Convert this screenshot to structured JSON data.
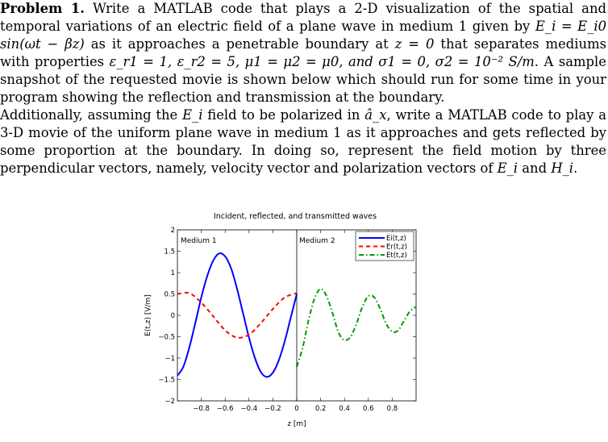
{
  "problem": {
    "heading": "Problem 1.",
    "part1_a": "Write a MATLAB code that plays a 2-D visualization of the spatial and temporal variations of an electric field of a plane wave in medium 1 given by",
    "field_expr": "E_i = E_i0 sin(ωt − βz)",
    "part1_b": "as it approaches a penetrable boundary at",
    "boundary_expr": "z = 0",
    "part1_c": "that separates mediums with properties",
    "properties_expr": "ε_r1 = 1, ε_r2 = 5, μ1 = μ2 = μ0, and σ1 = 0, σ2 = 10⁻² S/m.",
    "part1_d": "A sample snapshot of the requested movie is shown below which should run for some time in your program showing the reflection and transmission at the boundary.",
    "part2_a": "Additionally, assuming the",
    "part2_field": "E_i",
    "part2_b": "field to be polarized in",
    "part2_dir": "â_x",
    "part2_c": ", write a MATLAB code to play a 3-D movie of the uniform plane wave in medium 1 as it approaches and gets reflected by some proportion at the boundary. In doing so, represent the field motion by three perpendicular vectors, namely, velocity vector and polarization vectors of",
    "part2_e": "E_i",
    "part2_and": "and",
    "part2_h": "H_i",
    "part2_end": "."
  },
  "chart_data": {
    "type": "line",
    "title": "Incident, reflected, and transmitted waves",
    "xlabel": "z [m]",
    "ylabel": "E(t,z) [V/m]",
    "xlim": [
      -1.0,
      1.0
    ],
    "ylim": [
      -2,
      2
    ],
    "xticks": [
      "-0.8",
      "-0.6",
      "-0.4",
      "-0.2",
      "0",
      "0.2",
      "0.4",
      "0.6",
      "0.8"
    ],
    "yticks": [
      "-2",
      "-1.5",
      "-1",
      "-0.5",
      "0",
      "0.5",
      "1",
      "1.5",
      "2"
    ],
    "boundary_x": 0,
    "annotations": [
      "Medium 1",
      "Medium 2"
    ],
    "legend_placement": "top-right",
    "series": [
      {
        "name": "Ei(t,z)",
        "color": "#0000ff",
        "style": "solid",
        "x": [
          -1.0,
          -0.95,
          -0.9,
          -0.85,
          -0.8,
          -0.75,
          -0.7,
          -0.65,
          -0.6,
          -0.55,
          -0.5,
          -0.45,
          -0.4,
          -0.35,
          -0.3,
          -0.25,
          -0.2,
          -0.15,
          -0.1,
          -0.05,
          0.0
        ],
        "y": [
          -1.41,
          -1.2,
          -0.75,
          -0.18,
          0.42,
          0.92,
          1.28,
          1.45,
          1.38,
          1.1,
          0.62,
          0.05,
          -0.52,
          -1.0,
          -1.33,
          -1.44,
          -1.34,
          -1.05,
          -0.6,
          -0.05,
          0.5
        ]
      },
      {
        "name": "Er(t,z)",
        "color": "#ff0000",
        "style": "dashed",
        "x": [
          -1.0,
          -0.9,
          -0.8,
          -0.7,
          -0.6,
          -0.5,
          -0.4,
          -0.3,
          -0.2,
          -0.1,
          0.0
        ],
        "y": [
          0.5,
          0.52,
          0.3,
          -0.02,
          -0.35,
          -0.52,
          -0.45,
          -0.18,
          0.15,
          0.42,
          0.52
        ]
      },
      {
        "name": "Et(t,z)",
        "color": "#009900",
        "style": "dashdot",
        "x": [
          0.0,
          0.05,
          0.1,
          0.15,
          0.2,
          0.25,
          0.3,
          0.35,
          0.4,
          0.45,
          0.5,
          0.55,
          0.6,
          0.65,
          0.7,
          0.75,
          0.8,
          0.85,
          0.9,
          0.95,
          1.0
        ],
        "y": [
          -1.2,
          -0.75,
          -0.1,
          0.4,
          0.62,
          0.45,
          0.05,
          -0.4,
          -0.58,
          -0.5,
          -0.2,
          0.2,
          0.45,
          0.42,
          0.15,
          -0.2,
          -0.38,
          -0.35,
          -0.12,
          0.1,
          0.2
        ]
      }
    ]
  }
}
